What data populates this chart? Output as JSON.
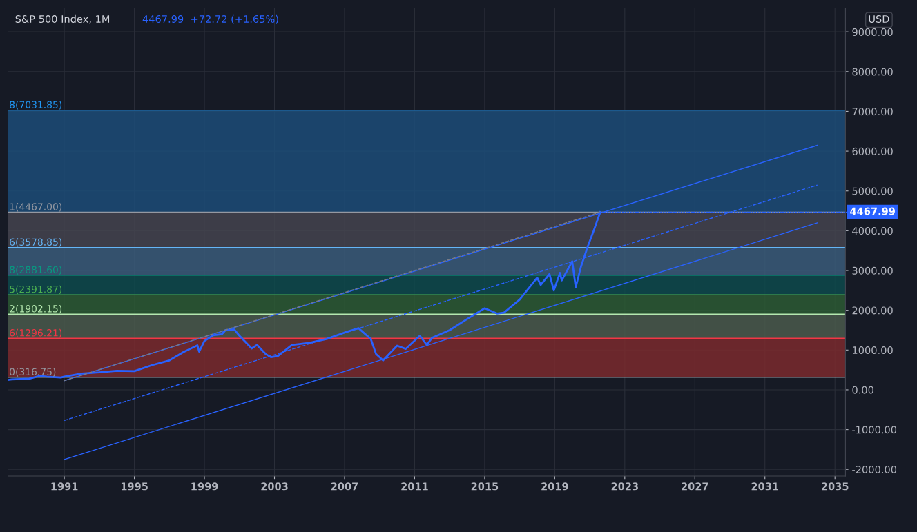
{
  "chart_data": {
    "type": "line",
    "title": "S&P 500 Index, 1M",
    "subtitle": "4467.99  +72.72 (+1.65%)",
    "ylabel": "USD",
    "xlim": [
      1987.8,
      2035.6
    ],
    "ylim": [
      -2170,
      9600
    ],
    "xticks": [
      1991,
      1995,
      1999,
      2003,
      2007,
      2011,
      2015,
      2019,
      2023,
      2027,
      2031,
      2035
    ],
    "yticks": [
      {
        "value": -2000,
        "label": "-2000.00"
      },
      {
        "value": -1000,
        "label": "-1000.00"
      },
      {
        "value": 0,
        "label": "0.00"
      },
      {
        "value": 1000,
        "label": "1000.00"
      },
      {
        "value": 2000,
        "label": "2000.00"
      },
      {
        "value": 3000,
        "label": "3000.00"
      },
      {
        "value": 4000,
        "label": "4000.00"
      },
      {
        "value": 5000,
        "label": "5000.00"
      },
      {
        "value": 6000,
        "label": "6000.00"
      },
      {
        "value": 7000,
        "label": "7000.00"
      },
      {
        "value": 8000,
        "label": "8000.00"
      },
      {
        "value": 9000,
        "label": "9000.00"
      }
    ],
    "grid": true,
    "marker": "none",
    "series": [
      {
        "color": "#2962ff",
        "line_style": "solid",
        "x": [
          1987.8,
          1988.0,
          1989.0,
          1989.6,
          1990.0,
          1990.8,
          1991.0,
          1992.0,
          1993.0,
          1994.0,
          1995.0,
          1996.0,
          1997.0,
          1997.8,
          1998.6,
          1998.7,
          1999.0,
          1999.5,
          2000.0,
          2000.2,
          2000.7,
          2001.0,
          2001.7,
          2002.0,
          2002.5,
          2002.8,
          2003.2,
          2004.0,
          2005.0,
          2006.0,
          2007.0,
          2007.8,
          2008.5,
          2008.8,
          2009.2,
          2010.0,
          2010.5,
          2011.3,
          2011.7,
          2012.0,
          2013.0,
          2014.0,
          2015.0,
          2015.7,
          2016.1,
          2017.0,
          2018.0,
          2018.2,
          2018.7,
          2018.95,
          2019.3,
          2019.4,
          2020.0,
          2020.2,
          2020.5,
          2020.9,
          2021.2,
          2021.6
        ],
        "values": [
          250,
          260,
          280,
          350,
          330,
          310,
          330,
          410,
          440,
          480,
          470,
          620,
          740,
          950,
          1120,
          960,
          1230,
          1370,
          1400,
          1500,
          1520,
          1360,
          1040,
          1130,
          900,
          820,
          850,
          1130,
          1180,
          1280,
          1440,
          1550,
          1280,
          900,
          740,
          1110,
          1030,
          1360,
          1130,
          1310,
          1500,
          1780,
          2050,
          1920,
          1940,
          2270,
          2820,
          2640,
          2910,
          2500,
          2940,
          2750,
          3230,
          2580,
          3100,
          3620,
          3970,
          4470
        ]
      },
      {
        "type": "line",
        "color": "#2962ff",
        "line_style": "solid",
        "x": [
          1991.0,
          2034.0
        ],
        "values": [
          230,
          6150
        ]
      },
      {
        "type": "line",
        "color": "#2962ff",
        "line_style": "dashed",
        "x": [
          1991.0,
          2034.0
        ],
        "values": [
          -770,
          5150
        ]
      },
      {
        "type": "line",
        "color": "#2962ff",
        "line_style": "solid",
        "x": [
          1991.0,
          2034.0
        ],
        "values": [
          -1750,
          4200
        ]
      },
      {
        "type": "line",
        "color": "#787b86",
        "line_style": "dashed",
        "x": [
          1991.0,
          2021.6
        ],
        "values": [
          230,
          4470
        ]
      }
    ],
    "bands": [
      {
        "axis": "y",
        "from": 316.75,
        "to": 1296.21,
        "color": "#7a2a2e"
      },
      {
        "axis": "y",
        "from": 1296.21,
        "to": 1902.15,
        "color": "#4a5a4c"
      },
      {
        "axis": "y",
        "from": 1902.15,
        "to": 2391.87,
        "color": "#2c5a34"
      },
      {
        "axis": "y",
        "from": 2391.87,
        "to": 2881.6,
        "color": "#0d4a4c"
      },
      {
        "axis": "y",
        "from": 2881.6,
        "to": 3578.85,
        "color": "#3a5c7a"
      },
      {
        "axis": "y",
        "from": 3578.85,
        "to": 4467.0,
        "color": "#44444f"
      },
      {
        "axis": "y",
        "from": 4467.0,
        "to": 7031.85,
        "color": "#1c4c78"
      }
    ],
    "ref_lines": [
      {
        "axis": "y",
        "value": 316.75,
        "label": "0(316.75)",
        "color": "#9598a1"
      },
      {
        "axis": "y",
        "value": 1296.21,
        "label": "6(1296.21)",
        "color": "#f23645"
      },
      {
        "axis": "y",
        "value": 1902.15,
        "label": "2(1902.15)",
        "color": "#b5e8b0"
      },
      {
        "axis": "y",
        "value": 2391.87,
        "label": "5(2391.87)",
        "color": "#4caf50"
      },
      {
        "axis": "y",
        "value": 2881.6,
        "label": "8(2881.60)",
        "color": "#089981"
      },
      {
        "axis": "y",
        "value": 3578.85,
        "label": "6(3578.85)",
        "color": "#64b5f6"
      },
      {
        "axis": "y",
        "value": 4467.0,
        "label": "1(4467.00)",
        "color": "#9598a1"
      },
      {
        "axis": "y",
        "value": 7031.85,
        "label": "8(7031.85)",
        "color": "#2196f3"
      }
    ],
    "annotations": [
      {
        "text": "4467.99",
        "x": 2021.6,
        "y": 4467.99
      }
    ]
  }
}
